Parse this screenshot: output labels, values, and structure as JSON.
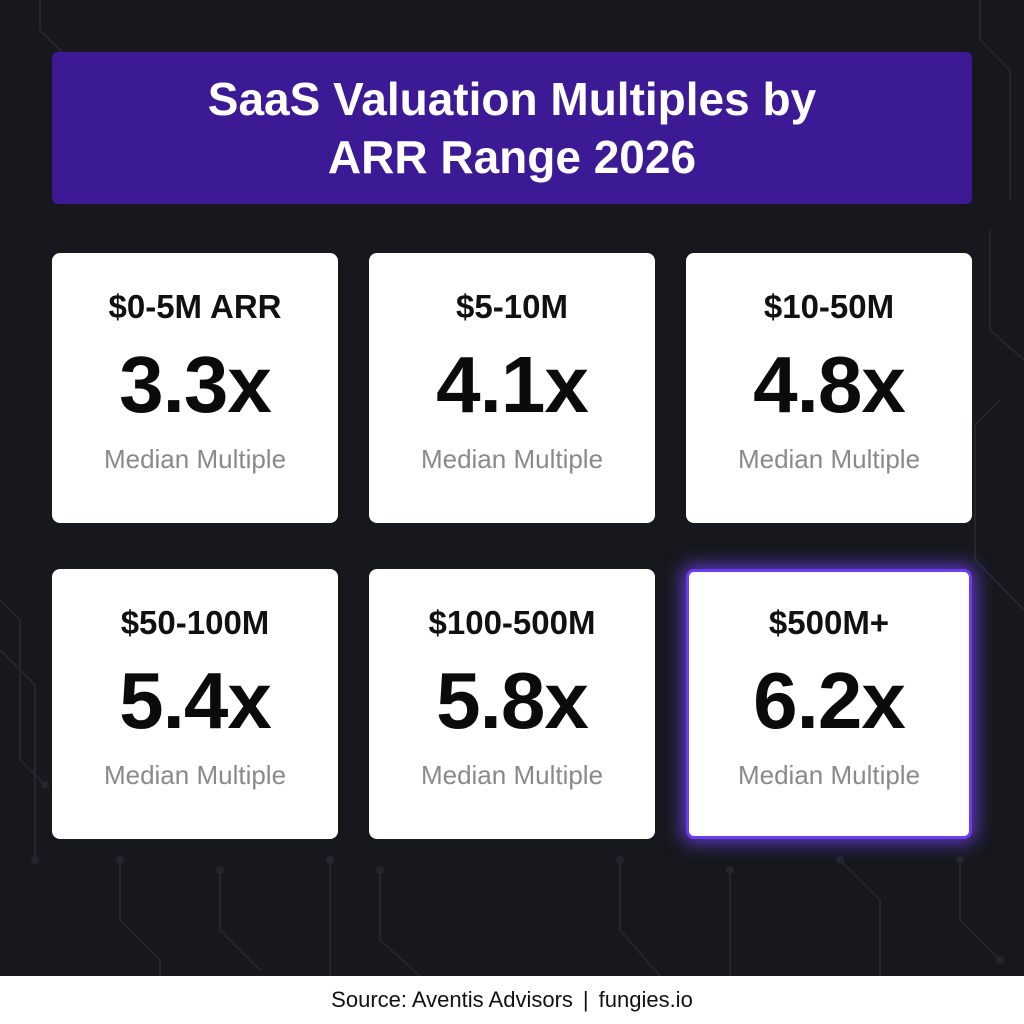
{
  "title": "SaaS Valuation Multiples by ARR Range 2026",
  "cards": [
    {
      "range": "$0-5M ARR",
      "value": "3.3x",
      "caption": "Median Multiple",
      "highlighted": false
    },
    {
      "range": "$5-10M",
      "value": "4.1x",
      "caption": "Median Multiple",
      "highlighted": false
    },
    {
      "range": "$10-50M",
      "value": "4.8x",
      "caption": "Median Multiple",
      "highlighted": false
    },
    {
      "range": "$50-100M",
      "value": "5.4x",
      "caption": "Median Multiple",
      "highlighted": false
    },
    {
      "range": "$100-500M",
      "value": "5.8x",
      "caption": "Median Multiple",
      "highlighted": false
    },
    {
      "range": "$500M+",
      "value": "6.2x",
      "caption": "Median Multiple",
      "highlighted": true
    }
  ],
  "footer": {
    "source": "Source: Aventis Advisors",
    "separator": "|",
    "site": "fungies.io"
  },
  "colors": {
    "background": "#16181d",
    "banner": "#3d1a95",
    "card": "#ffffff",
    "highlight_glow": "#6a3df0"
  }
}
